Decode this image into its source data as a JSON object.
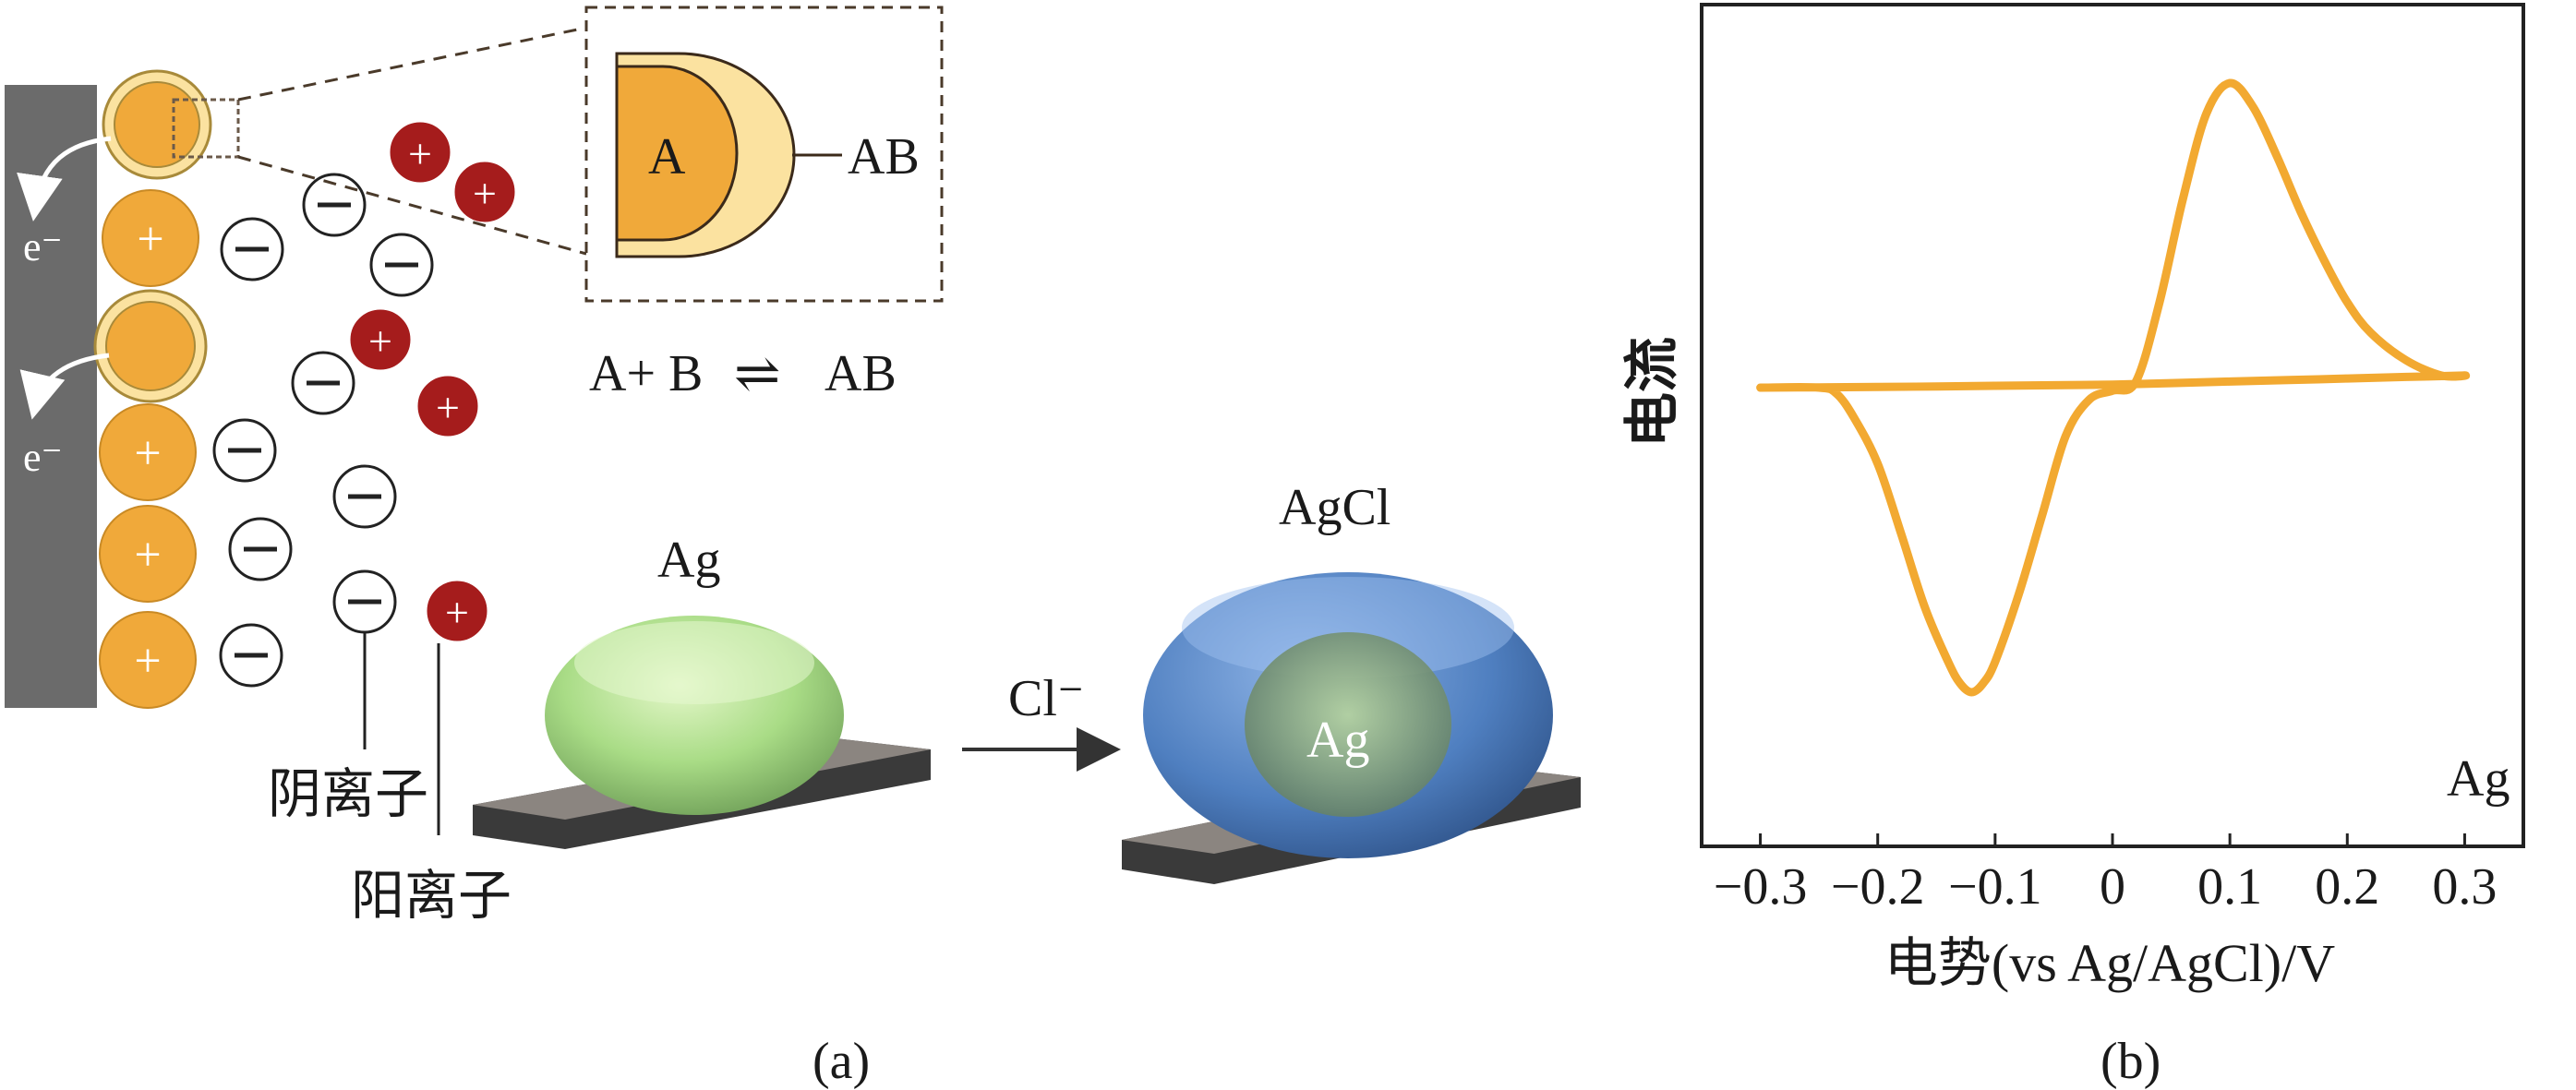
{
  "panel_a": {
    "caption": "(a)",
    "electron_label": "e⁻",
    "inset": {
      "core_label": "A",
      "shell_label": "AB"
    },
    "equation": {
      "left": "A+ B",
      "arrow": "⇌",
      "right": "AB"
    },
    "anion_label": "阴离子",
    "cation_label": "阳离子",
    "silver_label": "Ag",
    "reagent_label": "Cl⁻",
    "chloride_label": "AgCl",
    "core_silver_label": "Ag",
    "colors": {
      "electrode": "#6b6b6b",
      "particle": "#f0a93a",
      "cation": "#a51c1c",
      "silver": "#bfe89a",
      "chloride": "#4f7fc0"
    }
  },
  "panel_b": {
    "caption": "(b)",
    "ylabel": "电流",
    "xlabel": "电势(vs Ag/AgCl)/V",
    "annotation": "Ag",
    "curve_color": "#f2a931"
  },
  "chart_data": {
    "type": "line",
    "xlabel": "电势(vs Ag/AgCl)/V",
    "ylabel": "电流",
    "xlim": [
      -0.35,
      0.35
    ],
    "xticks": [
      -0.3,
      -0.2,
      -0.1,
      0,
      0.1,
      0.2,
      0.3
    ],
    "xtick_labels": [
      "−0.3",
      "−0.2",
      "−0.1",
      "0",
      "0.1",
      "0.2",
      "0.3"
    ],
    "grid": false,
    "series": [
      {
        "x": [
          -0.3,
          -0.25,
          -0.235,
          -0.22,
          -0.2,
          -0.18,
          -0.16,
          -0.14,
          -0.13,
          -0.12,
          -0.11,
          -0.1,
          -0.08,
          -0.06,
          -0.04,
          -0.02,
          0.0,
          0.02,
          0.04,
          0.06,
          0.08,
          0.1,
          0.12,
          0.14,
          0.16,
          0.18,
          0.2,
          0.22,
          0.25,
          0.28,
          0.3,
          0.25,
          0.2,
          0.15,
          0.1,
          0.05,
          0.0,
          -0.05,
          -0.1,
          -0.15,
          -0.2,
          -0.25,
          -0.3
        ],
        "y": [
          0.0,
          0.0,
          -0.02,
          -0.1,
          -0.25,
          -0.48,
          -0.72,
          -0.9,
          -0.97,
          -1.0,
          -0.97,
          -0.9,
          -0.68,
          -0.42,
          -0.16,
          -0.04,
          -0.01,
          0.02,
          0.28,
          0.62,
          0.9,
          1.0,
          0.92,
          0.76,
          0.58,
          0.42,
          0.28,
          0.18,
          0.09,
          0.04,
          0.04,
          0.035,
          0.03,
          0.025,
          0.02,
          0.015,
          0.01,
          0.008,
          0.006,
          0.004,
          0.002,
          0.001,
          0.0
        ]
      }
    ]
  }
}
